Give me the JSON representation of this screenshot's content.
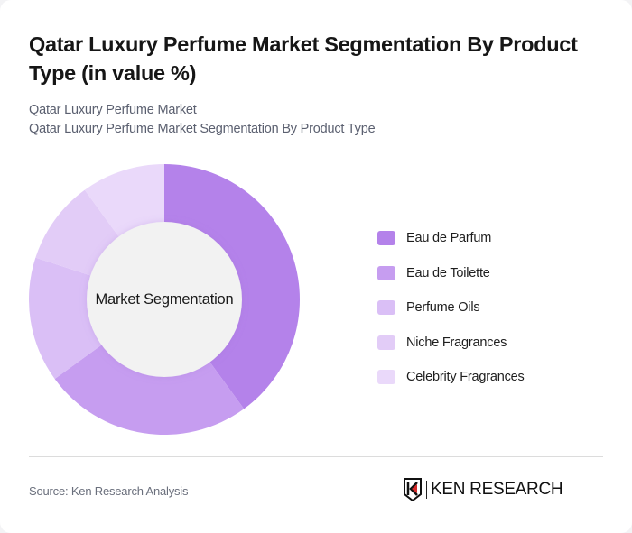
{
  "header": {
    "title": "Qatar Luxury Perfume Market Segmentation By Product Type (in value %)",
    "subtitle_1": "Qatar Luxury Perfume Market",
    "subtitle_2": "Qatar Luxury Perfume Market Segmentation By Product Type"
  },
  "chart": {
    "center_label": "Market Segmentation"
  },
  "legend": [
    {
      "label": "Eau de Parfum",
      "color": "#b482ea"
    },
    {
      "label": "Eau de Toilette",
      "color": "#c69df0"
    },
    {
      "label": "Perfume Oils",
      "color": "#dabff6"
    },
    {
      "label": "Niche Fragrances",
      "color": "#e2ccf7"
    },
    {
      "label": "Celebrity Fragrances",
      "color": "#ead9fa"
    }
  ],
  "footer": {
    "source": "Source: Ken Research Analysis",
    "logo_text": "KEN RESEARCH"
  },
  "chart_data": {
    "type": "pie",
    "subtype": "donut",
    "title": "Qatar Luxury Perfume Market Segmentation By Product Type (in value %)",
    "center_label": "Market Segmentation",
    "categories": [
      "Eau de Parfum",
      "Eau de Toilette",
      "Perfume Oils",
      "Niche Fragrances",
      "Celebrity Fragrances"
    ],
    "values": [
      40,
      25,
      15,
      10,
      10
    ],
    "colors": [
      "#b482ea",
      "#c69df0",
      "#dabff6",
      "#e2ccf7",
      "#ead9fa"
    ],
    "unit": "%",
    "legend_position": "right"
  }
}
